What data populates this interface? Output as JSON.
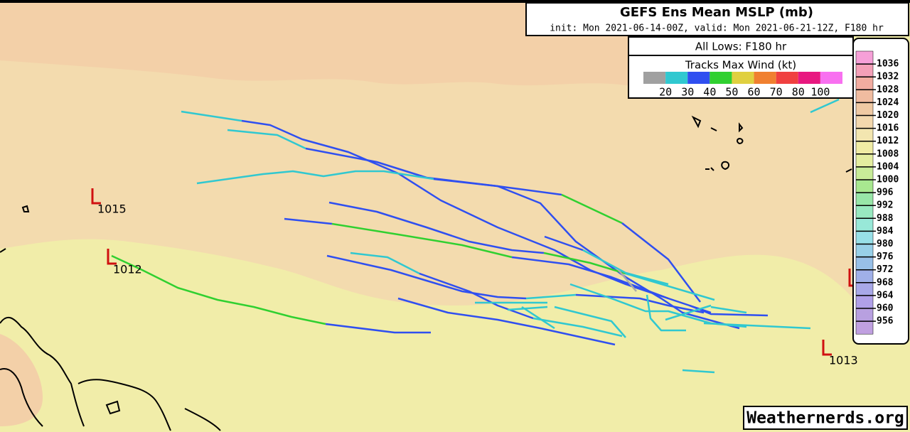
{
  "header": {
    "title": "GEFS Ens Mean MSLP (mb)",
    "subtitle": "init: Mon 2021-06-14-00Z, valid: Mon 2021-06-21-12Z, F180 hr"
  },
  "legend": {
    "title": "All Lows: F180 hr",
    "wind_title": "Tracks Max Wind (kt)",
    "wind_labels": [
      "20",
      "30",
      "40",
      "50",
      "60",
      "70",
      "80",
      "100"
    ]
  },
  "colorbar": {
    "labels": [
      "1036",
      "1032",
      "1028",
      "1024",
      "1020",
      "1016",
      "1012",
      "1008",
      "1004",
      "1000",
      "996",
      "992",
      "988",
      "984",
      "980",
      "976",
      "972",
      "968",
      "964",
      "960",
      "956"
    ]
  },
  "lows": [
    {
      "label": "1015"
    },
    {
      "label": "1012"
    },
    {
      "label": "1013"
    }
  ],
  "watermark": "Weathernerds.org"
}
